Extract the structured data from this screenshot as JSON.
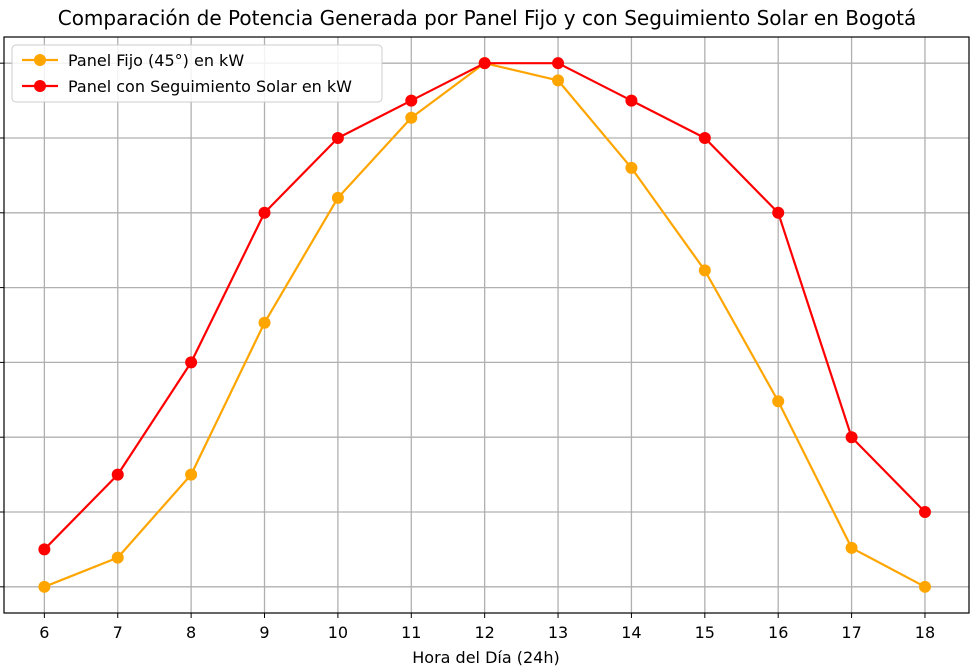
{
  "chart_data": {
    "type": "line",
    "title": "Comparación de Potencia Generada por Panel Fijo y con Seguimiento Solar en Bogotá",
    "xlabel": "Hora del Día (24h)",
    "ylabel": "",
    "x": [
      6,
      7,
      8,
      9,
      10,
      11,
      12,
      13,
      14,
      15,
      16,
      17,
      18
    ],
    "x_tick_labels": [
      "6",
      "7",
      "8",
      "9",
      "10",
      "11",
      "12",
      "13",
      "14",
      "15",
      "16",
      "17",
      "18"
    ],
    "xlim": [
      5.45,
      18.6
    ],
    "ylim": [
      -0.35,
      7.35
    ],
    "y_gridlines": [
      0,
      1,
      2,
      3,
      4,
      5,
      6,
      7
    ],
    "grid": true,
    "legend_position": "upper-left",
    "series": [
      {
        "name": "Panel Fijo (45°) en kW",
        "color": "#FFA500",
        "values": [
          0.0,
          0.39,
          1.5,
          3.53,
          5.2,
          6.27,
          7.0,
          6.77,
          5.6,
          4.23,
          2.48,
          0.52,
          0.0
        ]
      },
      {
        "name": "Panel con Seguimiento Solar en kW",
        "color": "#FF0000",
        "values": [
          0.5,
          1.5,
          3.0,
          5.0,
          6.0,
          6.5,
          7.0,
          7.0,
          6.5,
          6.0,
          5.0,
          2.0,
          1.0
        ]
      }
    ]
  }
}
